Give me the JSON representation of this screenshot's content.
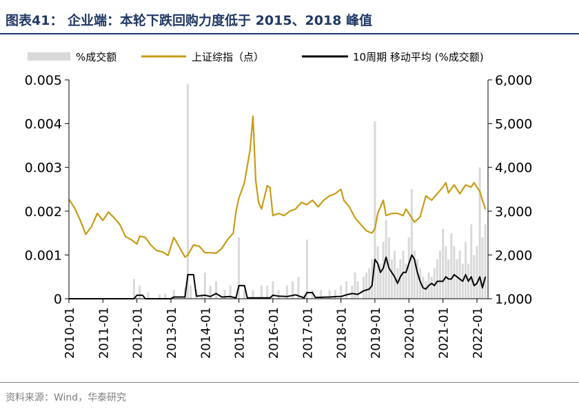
{
  "header": {
    "title": "图表41：  企业端：本轮下跌回购力度低于 2015、2018 峰值"
  },
  "footer": {
    "source": "资料来源：Wind，华泰研究"
  },
  "colors": {
    "title_bar": "#1f3864",
    "bar_series": "#d9d9d9",
    "index_line": "#c89b14",
    "ma_line": "#000000",
    "axis": "#000000",
    "footer_text": "#7f7f7f"
  },
  "chart_data": {
    "type": "bar+line",
    "x_ticks": [
      "2010-01",
      "2011-01",
      "2012-01",
      "2013-01",
      "2014-01",
      "2015-01",
      "2016-01",
      "2017-01",
      "2018-01",
      "2019-01",
      "2020-01",
      "2021-01",
      "2022-01"
    ],
    "x_range": [
      "2010-01-01",
      "2022-04-30"
    ],
    "y_left": {
      "min": 0,
      "max": 0.005,
      "ticks": [
        "0",
        "0.001",
        "0.002",
        "0.003",
        "0.004",
        "0.005"
      ]
    },
    "y_right": {
      "min": 1000,
      "max": 6000,
      "ticks": [
        "1,000",
        "2,000",
        "3,000",
        "4,000",
        "5,000",
        "6,000"
      ]
    },
    "grid": false,
    "legend_position": "top",
    "legend": [
      {
        "label": "%成交额",
        "kind": "bar"
      },
      {
        "label": "上证综指（点）",
        "kind": "line"
      },
      {
        "label": "10周期 移动平均 (%成交额)",
        "kind": "line"
      }
    ],
    "series": [
      {
        "name": "%成交额",
        "axis": "left",
        "kind": "bar",
        "points": [
          [
            "2010-03-01",
            1e-05
          ],
          [
            "2011-06-01",
            2e-05
          ],
          [
            "2011-12-01",
            0.00045
          ],
          [
            "2012-02-01",
            0.0003
          ],
          [
            "2012-05-01",
            0.00015
          ],
          [
            "2012-09-01",
            0.0001
          ],
          [
            "2012-11-01",
            0.00012
          ],
          [
            "2013-02-01",
            0.0002
          ],
          [
            "2013-06-01",
            0.00025
          ],
          [
            "2013-07-01",
            0.0049
          ],
          [
            "2013-08-01",
            0.0003
          ],
          [
            "2013-10-01",
            0.0002
          ],
          [
            "2013-12-01",
            0.0001
          ],
          [
            "2014-01-01",
            0.0006
          ],
          [
            "2014-03-01",
            0.0003
          ],
          [
            "2014-05-01",
            0.0004
          ],
          [
            "2014-08-01",
            0.0002
          ],
          [
            "2014-10-01",
            0.0003
          ],
          [
            "2015-01-01",
            0.0014
          ],
          [
            "2015-03-01",
            0.0002
          ],
          [
            "2015-06-01",
            0.0002
          ],
          [
            "2015-09-01",
            0.0003
          ],
          [
            "2015-11-01",
            0.0003
          ],
          [
            "2016-01-01",
            0.0004
          ],
          [
            "2016-03-01",
            0.0002
          ],
          [
            "2016-06-01",
            0.0003
          ],
          [
            "2016-08-01",
            0.0004
          ],
          [
            "2016-10-01",
            0.0005
          ],
          [
            "2016-12-01",
            0.0001
          ],
          [
            "2017-01-01",
            0.00135
          ],
          [
            "2017-03-01",
            0.0002
          ],
          [
            "2017-06-01",
            0.0002
          ],
          [
            "2017-09-01",
            0.0002
          ],
          [
            "2017-11-01",
            0.0002
          ],
          [
            "2018-01-01",
            0.0003
          ],
          [
            "2018-03-01",
            0.0004
          ],
          [
            "2018-05-01",
            0.0003
          ],
          [
            "2018-06-01",
            0.0006
          ],
          [
            "2018-07-01",
            0.0004
          ],
          [
            "2018-09-01",
            0.0005
          ],
          [
            "2018-10-01",
            0.0006
          ],
          [
            "2018-11-01",
            0.0007
          ],
          [
            "2018-12-01",
            0.0009
          ],
          [
            "2019-01-01",
            0.00405
          ],
          [
            "2019-02-01",
            0.0012
          ],
          [
            "2019-03-01",
            0.0008
          ],
          [
            "2019-04-01",
            0.0013
          ],
          [
            "2019-05-01",
            0.0018
          ],
          [
            "2019-06-01",
            0.0014
          ],
          [
            "2019-07-01",
            0.0009
          ],
          [
            "2019-08-01",
            0.0011
          ],
          [
            "2019-09-01",
            0.0007
          ],
          [
            "2019-10-01",
            0.0009
          ],
          [
            "2019-11-01",
            0.0011
          ],
          [
            "2019-12-01",
            0.0008
          ],
          [
            "2020-01-01",
            0.0014
          ],
          [
            "2020-02-01",
            0.0025
          ],
          [
            "2020-03-01",
            0.0011
          ],
          [
            "2020-04-01",
            0.0009
          ],
          [
            "2020-05-01",
            0.0007
          ],
          [
            "2020-06-01",
            0.0005
          ],
          [
            "2020-07-01",
            0.0004
          ],
          [
            "2020-08-01",
            0.0006
          ],
          [
            "2020-09-01",
            0.0005
          ],
          [
            "2020-10-01",
            0.0007
          ],
          [
            "2020-11-01",
            0.0009
          ],
          [
            "2020-12-01",
            0.0011
          ],
          [
            "2021-01-01",
            0.0016
          ],
          [
            "2021-02-01",
            0.0012
          ],
          [
            "2021-03-01",
            0.0009
          ],
          [
            "2021-04-01",
            0.0015
          ],
          [
            "2021-05-01",
            0.0012
          ],
          [
            "2021-06-01",
            0.0009
          ],
          [
            "2021-07-01",
            0.0011
          ],
          [
            "2021-08-01",
            0.0008
          ],
          [
            "2021-09-01",
            0.0013
          ],
          [
            "2021-10-01",
            0.0008
          ],
          [
            "2021-11-01",
            0.0017
          ],
          [
            "2021-12-01",
            0.001
          ],
          [
            "2022-01-01",
            0.0012
          ],
          [
            "2022-02-01",
            0.003
          ],
          [
            "2022-03-01",
            0.0014
          ],
          [
            "2022-04-01",
            0.0017
          ]
        ]
      },
      {
        "name": "上证综指（点）",
        "axis": "right",
        "kind": "line",
        "points": [
          [
            "2010-01-01",
            3270
          ],
          [
            "2010-03-01",
            3080
          ],
          [
            "2010-05-01",
            2800
          ],
          [
            "2010-07-01",
            2470
          ],
          [
            "2010-09-01",
            2650
          ],
          [
            "2010-11-01",
            2950
          ],
          [
            "2011-01-01",
            2790
          ],
          [
            "2011-03-01",
            2980
          ],
          [
            "2011-05-01",
            2850
          ],
          [
            "2011-07-01",
            2700
          ],
          [
            "2011-09-01",
            2420
          ],
          [
            "2011-11-01",
            2350
          ],
          [
            "2012-01-01",
            2250
          ],
          [
            "2012-02-01",
            2430
          ],
          [
            "2012-04-01",
            2400
          ],
          [
            "2012-06-01",
            2220
          ],
          [
            "2012-08-01",
            2100
          ],
          [
            "2012-10-01",
            2070
          ],
          [
            "2012-12-01",
            1990
          ],
          [
            "2013-02-01",
            2400
          ],
          [
            "2013-04-01",
            2180
          ],
          [
            "2013-06-01",
            1950
          ],
          [
            "2013-07-01",
            2000
          ],
          [
            "2013-09-01",
            2230
          ],
          [
            "2013-11-01",
            2200
          ],
          [
            "2014-01-01",
            2050
          ],
          [
            "2014-03-01",
            2050
          ],
          [
            "2014-05-01",
            2040
          ],
          [
            "2014-07-01",
            2150
          ],
          [
            "2014-09-01",
            2350
          ],
          [
            "2014-11-01",
            2500
          ],
          [
            "2014-12-01",
            3000
          ],
          [
            "2015-01-01",
            3300
          ],
          [
            "2015-03-01",
            3650
          ],
          [
            "2015-05-01",
            4400
          ],
          [
            "2015-06-01",
            5170
          ],
          [
            "2015-07-01",
            3700
          ],
          [
            "2015-08-01",
            3200
          ],
          [
            "2015-09-01",
            3050
          ],
          [
            "2015-11-01",
            3580
          ],
          [
            "2015-12-01",
            3540
          ],
          [
            "2016-01-01",
            2900
          ],
          [
            "2016-03-01",
            2950
          ],
          [
            "2016-05-01",
            2900
          ],
          [
            "2016-07-01",
            3000
          ],
          [
            "2016-09-01",
            3050
          ],
          [
            "2016-11-01",
            3200
          ],
          [
            "2017-01-01",
            3150
          ],
          [
            "2017-03-01",
            3250
          ],
          [
            "2017-05-01",
            3100
          ],
          [
            "2017-07-01",
            3250
          ],
          [
            "2017-09-01",
            3350
          ],
          [
            "2017-11-01",
            3400
          ],
          [
            "2018-01-01",
            3500
          ],
          [
            "2018-02-01",
            3250
          ],
          [
            "2018-04-01",
            3100
          ],
          [
            "2018-06-01",
            2850
          ],
          [
            "2018-08-01",
            2700
          ],
          [
            "2018-10-01",
            2550
          ],
          [
            "2018-12-01",
            2500
          ],
          [
            "2019-01-01",
            2600
          ],
          [
            "2019-02-01",
            2950
          ],
          [
            "2019-04-01",
            3250
          ],
          [
            "2019-05-01",
            2900
          ],
          [
            "2019-07-01",
            2950
          ],
          [
            "2019-09-01",
            2950
          ],
          [
            "2019-11-01",
            2900
          ],
          [
            "2019-12-01",
            3050
          ],
          [
            "2020-01-01",
            2950
          ],
          [
            "2020-03-01",
            2750
          ],
          [
            "2020-05-01",
            2870
          ],
          [
            "2020-07-01",
            3350
          ],
          [
            "2020-09-01",
            3250
          ],
          [
            "2020-11-01",
            3400
          ],
          [
            "2021-01-01",
            3550
          ],
          [
            "2021-02-01",
            3650
          ],
          [
            "2021-03-01",
            3420
          ],
          [
            "2021-05-01",
            3600
          ],
          [
            "2021-07-01",
            3400
          ],
          [
            "2021-09-01",
            3600
          ],
          [
            "2021-11-01",
            3550
          ],
          [
            "2021-12-01",
            3650
          ],
          [
            "2022-01-01",
            3550
          ],
          [
            "2022-02-01",
            3450
          ],
          [
            "2022-03-01",
            3250
          ],
          [
            "2022-04-01",
            3050
          ]
        ]
      },
      {
        "name": "10周期 移动平均 (%成交额)",
        "axis": "left",
        "kind": "line",
        "points": [
          [
            "2010-01-01",
            0
          ],
          [
            "2011-12-01",
            0
          ],
          [
            "2012-01-01",
            8e-05
          ],
          [
            "2012-03-01",
            8e-05
          ],
          [
            "2012-04-01",
            0
          ],
          [
            "2013-01-01",
            0
          ],
          [
            "2013-02-01",
            4e-05
          ],
          [
            "2013-06-01",
            4e-05
          ],
          [
            "2013-07-01",
            0.00055
          ],
          [
            "2013-09-01",
            0.00055
          ],
          [
            "2013-10-01",
            6e-05
          ],
          [
            "2014-01-01",
            8e-05
          ],
          [
            "2014-03-01",
            5e-05
          ],
          [
            "2014-05-01",
            0.00012
          ],
          [
            "2014-07-01",
            4e-05
          ],
          [
            "2014-10-01",
            5e-05
          ],
          [
            "2014-12-01",
            2e-05
          ],
          [
            "2015-01-01",
            0.0003
          ],
          [
            "2015-03-01",
            0.0003
          ],
          [
            "2015-04-01",
            2e-05
          ],
          [
            "2015-12-01",
            2e-05
          ],
          [
            "2016-01-01",
            8e-05
          ],
          [
            "2016-03-01",
            6e-05
          ],
          [
            "2016-06-01",
            5e-05
          ],
          [
            "2016-09-01",
            9e-05
          ],
          [
            "2016-12-01",
            2e-05
          ],
          [
            "2017-01-01",
            0.00014
          ],
          [
            "2017-03-01",
            0.00014
          ],
          [
            "2017-04-01",
            3e-05
          ],
          [
            "2017-09-01",
            4e-05
          ],
          [
            "2017-12-01",
            5e-05
          ],
          [
            "2018-01-01",
            5e-05
          ],
          [
            "2018-03-01",
            9e-05
          ],
          [
            "2018-05-01",
            0.00012
          ],
          [
            "2018-07-01",
            0.0001
          ],
          [
            "2018-09-01",
            0.00018
          ],
          [
            "2018-11-01",
            0.00022
          ],
          [
            "2018-12-01",
            0.0003
          ],
          [
            "2019-01-01",
            0.0009
          ],
          [
            "2019-02-01",
            0.0008
          ],
          [
            "2019-03-01",
            0.0006
          ],
          [
            "2019-04-01",
            0.0007
          ],
          [
            "2019-05-01",
            0.00095
          ],
          [
            "2019-06-01",
            0.0007
          ],
          [
            "2019-07-01",
            0.0006
          ],
          [
            "2019-08-01",
            0.0005
          ],
          [
            "2019-09-01",
            0.00035
          ],
          [
            "2019-10-01",
            0.0005
          ],
          [
            "2019-11-01",
            0.0006
          ],
          [
            "2019-12-01",
            0.0006
          ],
          [
            "2020-01-01",
            0.0008
          ],
          [
            "2020-02-01",
            0.001
          ],
          [
            "2020-03-01",
            0.0009
          ],
          [
            "2020-04-01",
            0.0006
          ],
          [
            "2020-05-01",
            0.0004
          ],
          [
            "2020-06-01",
            0.00025
          ],
          [
            "2020-07-01",
            0.00022
          ],
          [
            "2020-08-01",
            0.0003
          ],
          [
            "2020-09-01",
            0.00035
          ],
          [
            "2020-10-01",
            0.0003
          ],
          [
            "2020-11-01",
            0.0004
          ],
          [
            "2020-12-01",
            0.0004
          ],
          [
            "2021-01-01",
            0.0004
          ],
          [
            "2021-02-01",
            0.0005
          ],
          [
            "2021-03-01",
            0.00045
          ],
          [
            "2021-04-01",
            0.00045
          ],
          [
            "2021-05-01",
            0.00055
          ],
          [
            "2021-06-01",
            0.0005
          ],
          [
            "2021-07-01",
            0.00045
          ],
          [
            "2021-08-01",
            0.0004
          ],
          [
            "2021-09-01",
            0.00055
          ],
          [
            "2021-10-01",
            0.0004
          ],
          [
            "2021-11-01",
            0.0005
          ],
          [
            "2021-12-01",
            0.0003
          ],
          [
            "2022-01-01",
            0.00035
          ],
          [
            "2022-02-01",
            0.0005
          ],
          [
            "2022-03-01",
            0.00025
          ],
          [
            "2022-04-01",
            0.0005
          ]
        ]
      }
    ]
  }
}
